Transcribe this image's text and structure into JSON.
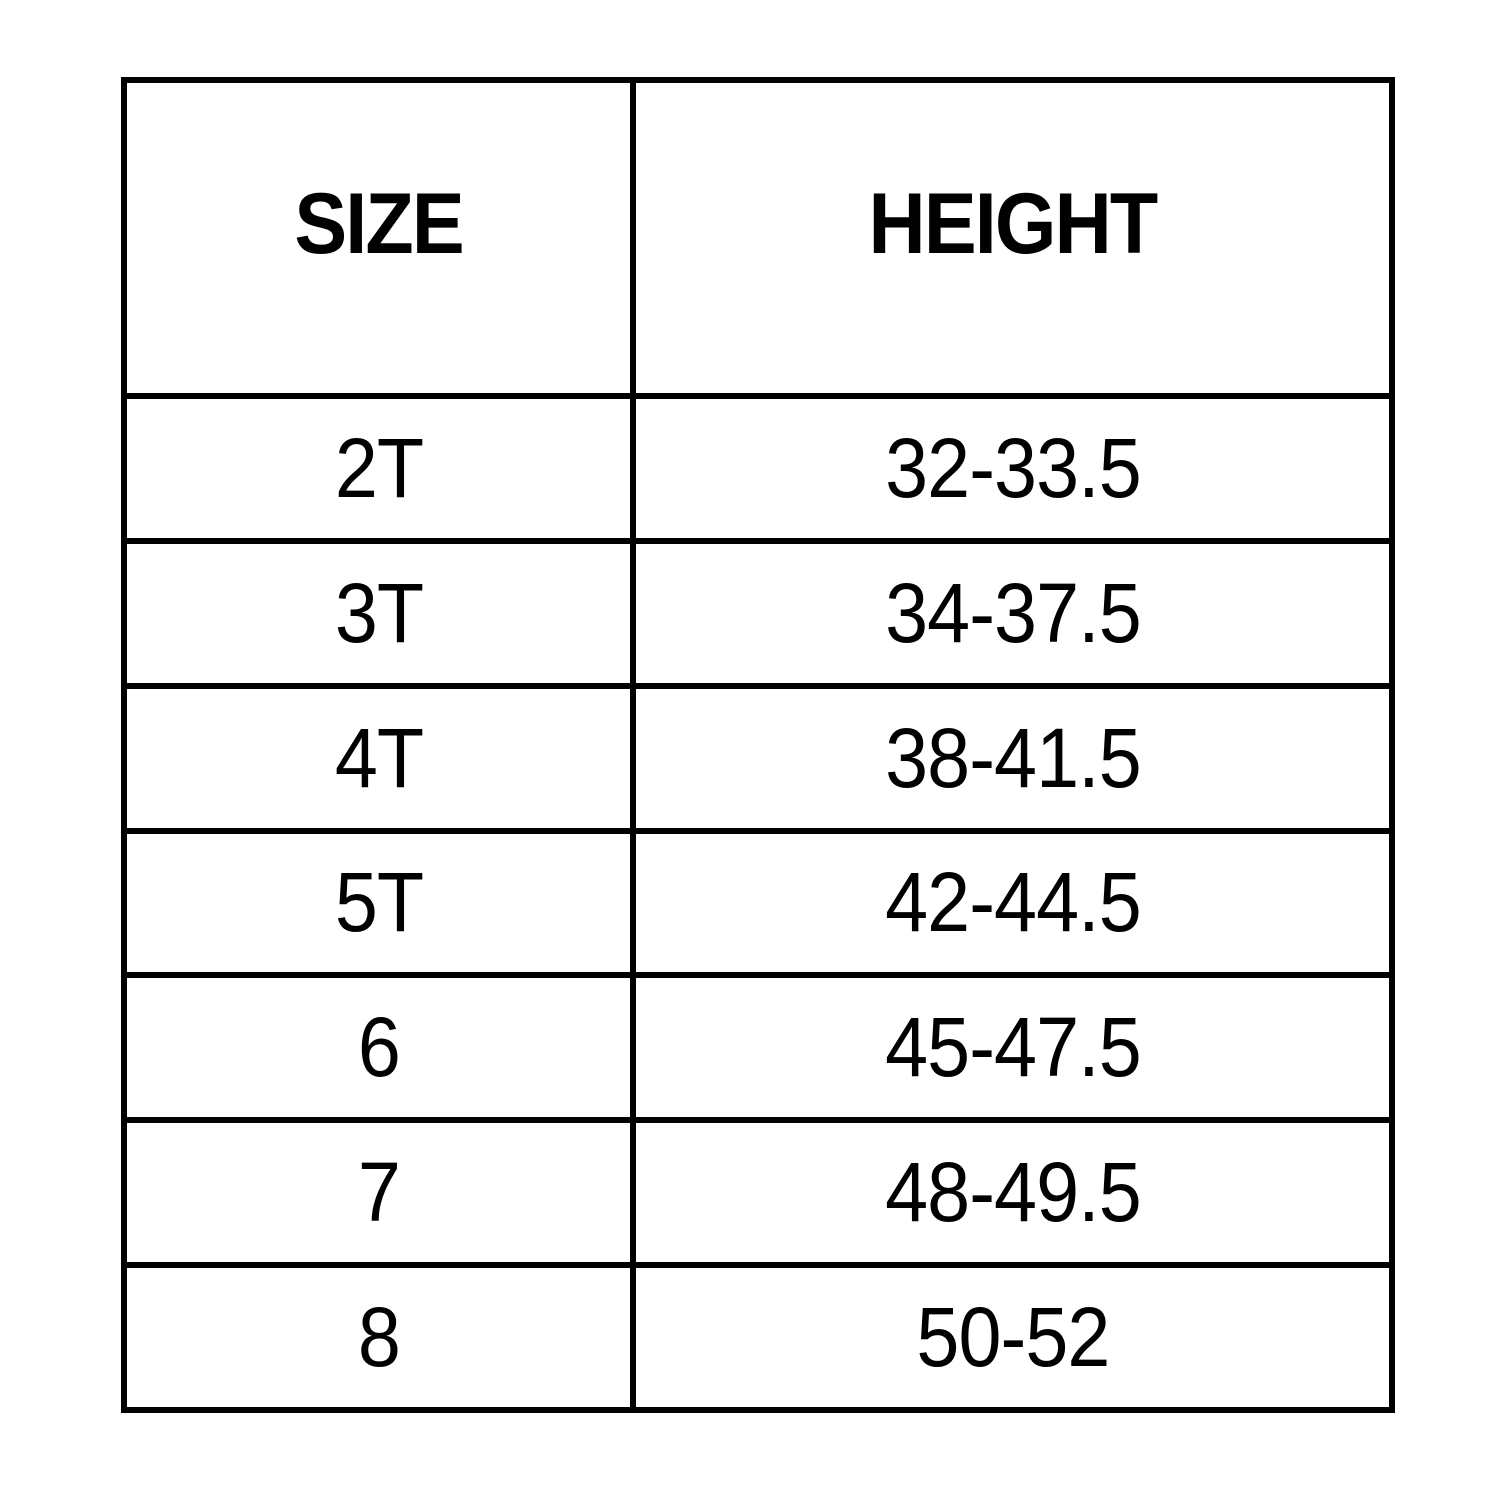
{
  "table": {
    "headers": [
      "SIZE",
      "HEIGHT"
    ],
    "rows": [
      [
        "2T",
        "32-33.5"
      ],
      [
        "3T",
        "34-37.5"
      ],
      [
        "4T",
        "38-41.5"
      ],
      [
        "5T",
        "42-44.5"
      ],
      [
        "6",
        "45-47.5"
      ],
      [
        "7",
        "48-49.5"
      ],
      [
        "8",
        "50-52"
      ]
    ]
  }
}
